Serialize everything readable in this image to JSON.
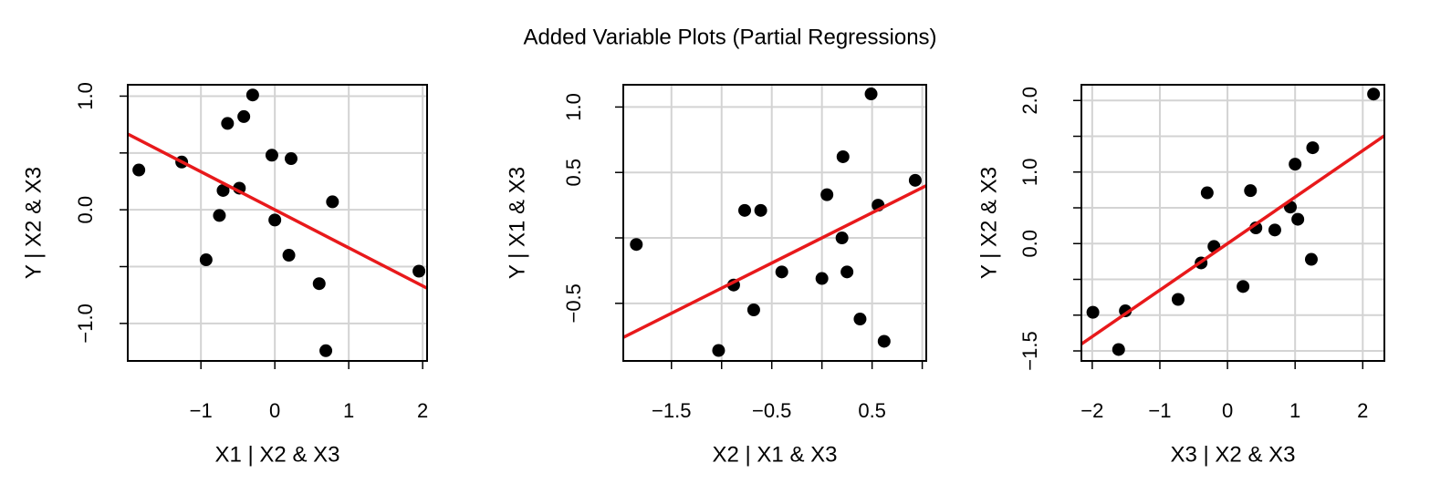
{
  "title": "Added Variable Plots (Partial Regressions)",
  "chart_data": [
    {
      "type": "scatter",
      "xlabel": "X1 | X2 & X3",
      "ylabel": "Y | X2 & X3",
      "xlim": [
        -1.99,
        2.06
      ],
      "ylim": [
        -1.33,
        1.1
      ],
      "xticks": [
        {
          "value": -1,
          "label": "−1"
        },
        0,
        1,
        2
      ],
      "yticks": [
        {
          "value": -1,
          "label": "−1.0"
        },
        {
          "value": 0,
          "label": "0.0"
        },
        {
          "value": 1,
          "label": "1.0"
        }
      ],
      "xgrid": [
        -1,
        0,
        1,
        2
      ],
      "ygrid": [
        -1,
        -0.5,
        0,
        0.5,
        1
      ],
      "grid": true,
      "color": "#000000",
      "line_color": "#e8191b",
      "fit": {
        "intercept": 0,
        "slope": -0.335
      },
      "x": [
        -1.84,
        -1.26,
        -0.93,
        -0.75,
        -0.7,
        -0.64,
        -0.48,
        -0.42,
        -0.3,
        -0.04,
        0,
        0.19,
        0.22,
        0.6,
        0.69,
        0.78,
        1.95
      ],
      "values": [
        0.35,
        0.42,
        -0.44,
        -0.05,
        0.17,
        0.76,
        0.19,
        0.82,
        1.01,
        0.48,
        -0.09,
        -0.4,
        0.45,
        -0.65,
        -1.24,
        0.07,
        -0.54
      ]
    },
    {
      "type": "scatter",
      "xlabel": "X2 | X1 & X3",
      "ylabel": "Y | X1 & X3",
      "xlim": [
        -1.98,
        1.04
      ],
      "ylim": [
        -0.94,
        1.17
      ],
      "xticks": [
        {
          "value": -1.5,
          "label": "−1.5"
        },
        {
          "value": -0.5,
          "label": "−0.5"
        },
        0.5
      ],
      "yticks": [
        {
          "value": -0.5,
          "label": "−0.5"
        },
        0.5,
        {
          "value": 1,
          "label": "1.0"
        }
      ],
      "xgrid": [
        -1.5,
        -1,
        -0.5,
        0,
        0.5,
        1
      ],
      "ygrid": [
        -0.5,
        0,
        0.5,
        1
      ],
      "grid": true,
      "color": "#000000",
      "line_color": "#e8191b",
      "fit": {
        "intercept": 0,
        "slope": 0.384
      },
      "x": [
        -1.85,
        -1.03,
        -0.88,
        -0.77,
        -0.68,
        -0.61,
        -0.4,
        0,
        0.05,
        0.2,
        0.21,
        0.25,
        0.38,
        0.49,
        0.56,
        0.62,
        0.93
      ],
      "values": [
        -0.05,
        -0.86,
        -0.36,
        0.21,
        -0.55,
        0.21,
        -0.26,
        -0.31,
        0.33,
        0,
        0.62,
        -0.26,
        -0.62,
        1.1,
        0.25,
        -0.79,
        0.44
      ]
    },
    {
      "type": "scatter",
      "xlabel": "X3 | X2 & X3",
      "ylabel": "Y | X2 & X3",
      "xlim": [
        -2.16,
        2.32
      ],
      "ylim": [
        -1.64,
        2.22
      ],
      "xticks": [
        {
          "value": -2,
          "label": "−2"
        },
        {
          "value": -1,
          "label": "−1"
        },
        0,
        1,
        2
      ],
      "yticks": [
        {
          "value": -1.5,
          "label": "−1.5"
        },
        {
          "value": 0,
          "label": "0.0"
        },
        {
          "value": 1,
          "label": "1.0"
        },
        {
          "value": 2,
          "label": "2.0"
        }
      ],
      "xgrid": [
        -2,
        -1,
        0,
        1,
        2
      ],
      "ygrid": [
        -1.5,
        -1,
        -0.5,
        0,
        0.5,
        1,
        1.5,
        2
      ],
      "grid": true,
      "color": "#000000",
      "line_color": "#e8191b",
      "fit": {
        "intercept": 0,
        "slope": 0.65
      },
      "x": [
        -1.99,
        -1.61,
        -1.51,
        -0.73,
        -0.39,
        -0.3,
        -0.2,
        0.23,
        0.34,
        0.42,
        0.7,
        0.93,
        1,
        1.04,
        1.24,
        1.26,
        2.16
      ],
      "values": [
        -0.96,
        -1.48,
        -0.94,
        -0.78,
        -0.27,
        0.71,
        -0.04,
        -0.6,
        0.74,
        0.22,
        0.19,
        0.51,
        1.11,
        0.34,
        -0.22,
        1.34,
        2.09
      ]
    }
  ]
}
